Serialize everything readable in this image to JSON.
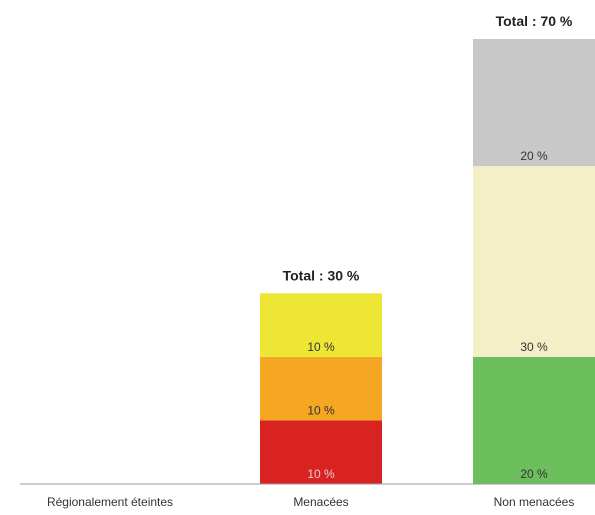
{
  "chart_data": {
    "type": "bar",
    "stacked": true,
    "categories": [
      "Régionalement éteintes",
      "Menacées",
      "Non menacées"
    ],
    "totals": [
      null,
      "Total : 30 %",
      "Total : 70 %"
    ],
    "stacks": [
      [],
      [
        {
          "value": 10,
          "label": "10 %",
          "color": "#d92323",
          "label_color": "#f2c9c9"
        },
        {
          "value": 10,
          "label": "10 %",
          "color": "#f5a623",
          "label_color": "#333333"
        },
        {
          "value": 10,
          "label": "10 %",
          "color": "#ede635",
          "label_color": "#333333"
        }
      ],
      [
        {
          "value": 20,
          "label": "20 %",
          "color": "#6cbf5c",
          "label_color": "#333333"
        },
        {
          "value": 30,
          "label": "30 %",
          "color": "#f4efc6",
          "label_color": "#333333"
        },
        {
          "value": 20,
          "label": "20 %",
          "color": "#c8c8c8",
          "label_color": "#333333"
        }
      ]
    ],
    "ylim": [
      0,
      70
    ],
    "grid": false,
    "legend": "none"
  }
}
